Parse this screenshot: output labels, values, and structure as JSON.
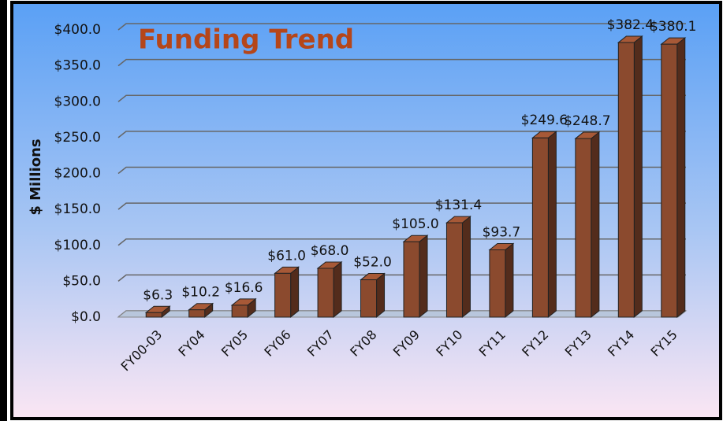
{
  "chart_data": {
    "type": "bar3d",
    "title": "Funding Trend",
    "y_label": "$ Millions",
    "categories": [
      "FY00-03",
      "FY04",
      "FY05",
      "FY06",
      "FY07",
      "FY08",
      "FY09",
      "FY10",
      "FY11",
      "FY12",
      "FY13",
      "FY14",
      "FY15"
    ],
    "values": [
      6.3,
      10.2,
      16.6,
      61.0,
      68.0,
      52.0,
      105.0,
      131.4,
      93.7,
      249.6,
      248.7,
      382.4,
      380.1
    ],
    "value_labels": [
      "$6.3",
      "$10.2",
      "$16.6",
      "$61.0",
      "$68.0",
      "$52.0",
      "$105.0",
      "$131.4",
      "$93.7",
      "$249.6",
      "$248.7",
      "$382.4",
      "$380.1"
    ],
    "color": "#8b4a2e",
    "ylim": [
      0,
      400
    ],
    "yticks": [
      {
        "value": 0,
        "label": "$0.0"
      },
      {
        "value": 50,
        "label": "$50.0"
      },
      {
        "value": 100,
        "label": "$100.0"
      },
      {
        "value": 150,
        "label": "$150.0"
      },
      {
        "value": 200,
        "label": "$200.0"
      },
      {
        "value": 250,
        "label": "$250.0"
      },
      {
        "value": 300,
        "label": "$300.0"
      },
      {
        "value": 350,
        "label": "$350.0"
      },
      {
        "value": 400,
        "label": "$400.0"
      }
    ],
    "grid": true
  }
}
